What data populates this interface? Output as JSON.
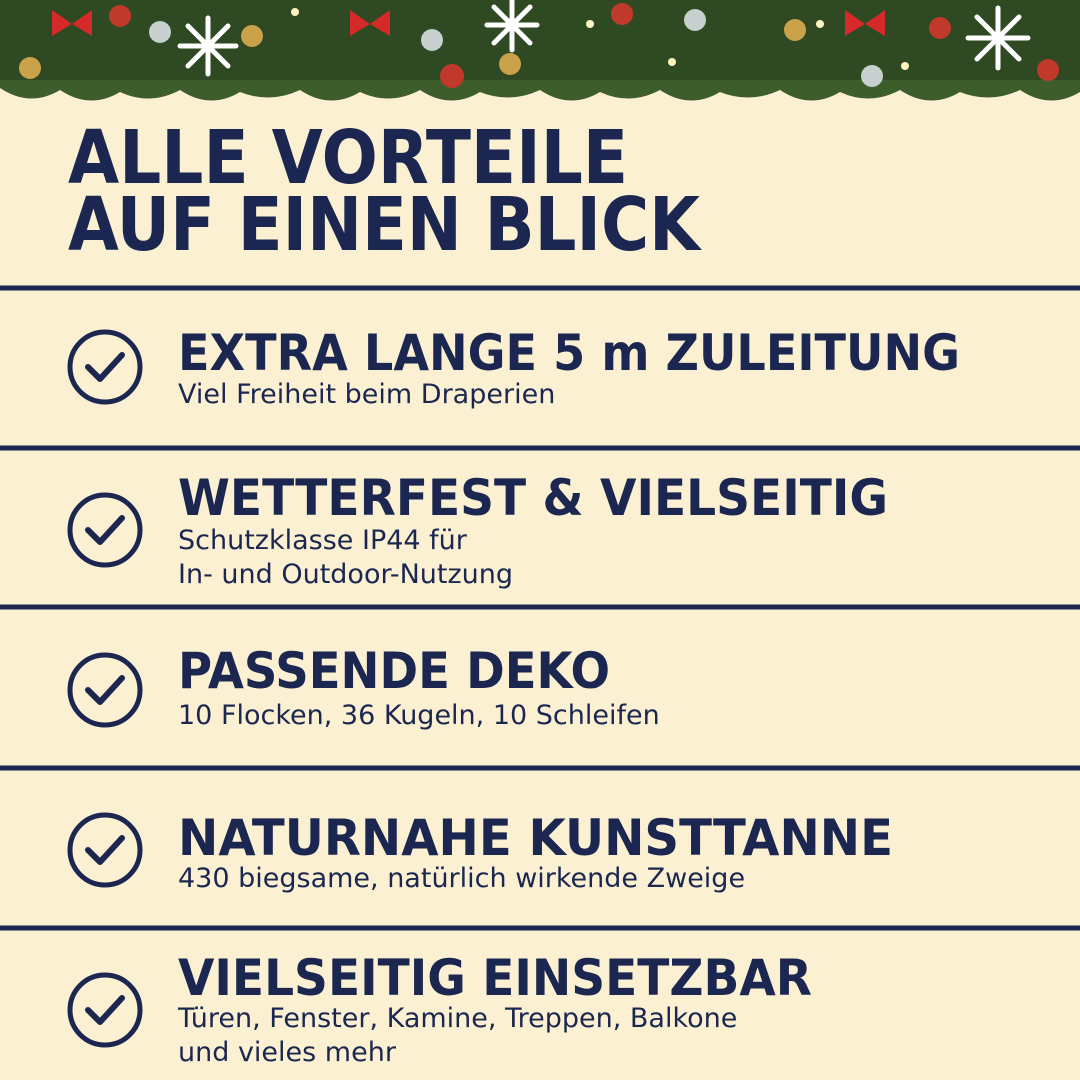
{
  "title": [
    "ALLE VORTEILE",
    "AUF EINEN BLICK"
  ],
  "items": [
    {
      "heading": "EXTRA LANGE 5 m ZULEITUNG",
      "lines": [
        "Viel Freiheit beim Draperien"
      ]
    },
    {
      "heading": "WETTERFEST & VIELSEITIG",
      "lines": [
        "Schutzklasse IP44 für",
        "In- und Outdoor-Nutzung"
      ]
    },
    {
      "heading": "PASSENDE DEKO",
      "lines": [
        "10 Flocken, 36 Kugeln, 10 Schleifen"
      ]
    },
    {
      "heading": "NATURNAHE KUNSTTANNE",
      "lines": [
        "430 biegsame, natürlich wirkende Zweige"
      ]
    },
    {
      "heading": "VIELSEITIG EINSETZBAR",
      "lines": [
        "Türen, Fenster, Kamine, Treppen, Balkone",
        "und vieles mehr"
      ]
    }
  ]
}
